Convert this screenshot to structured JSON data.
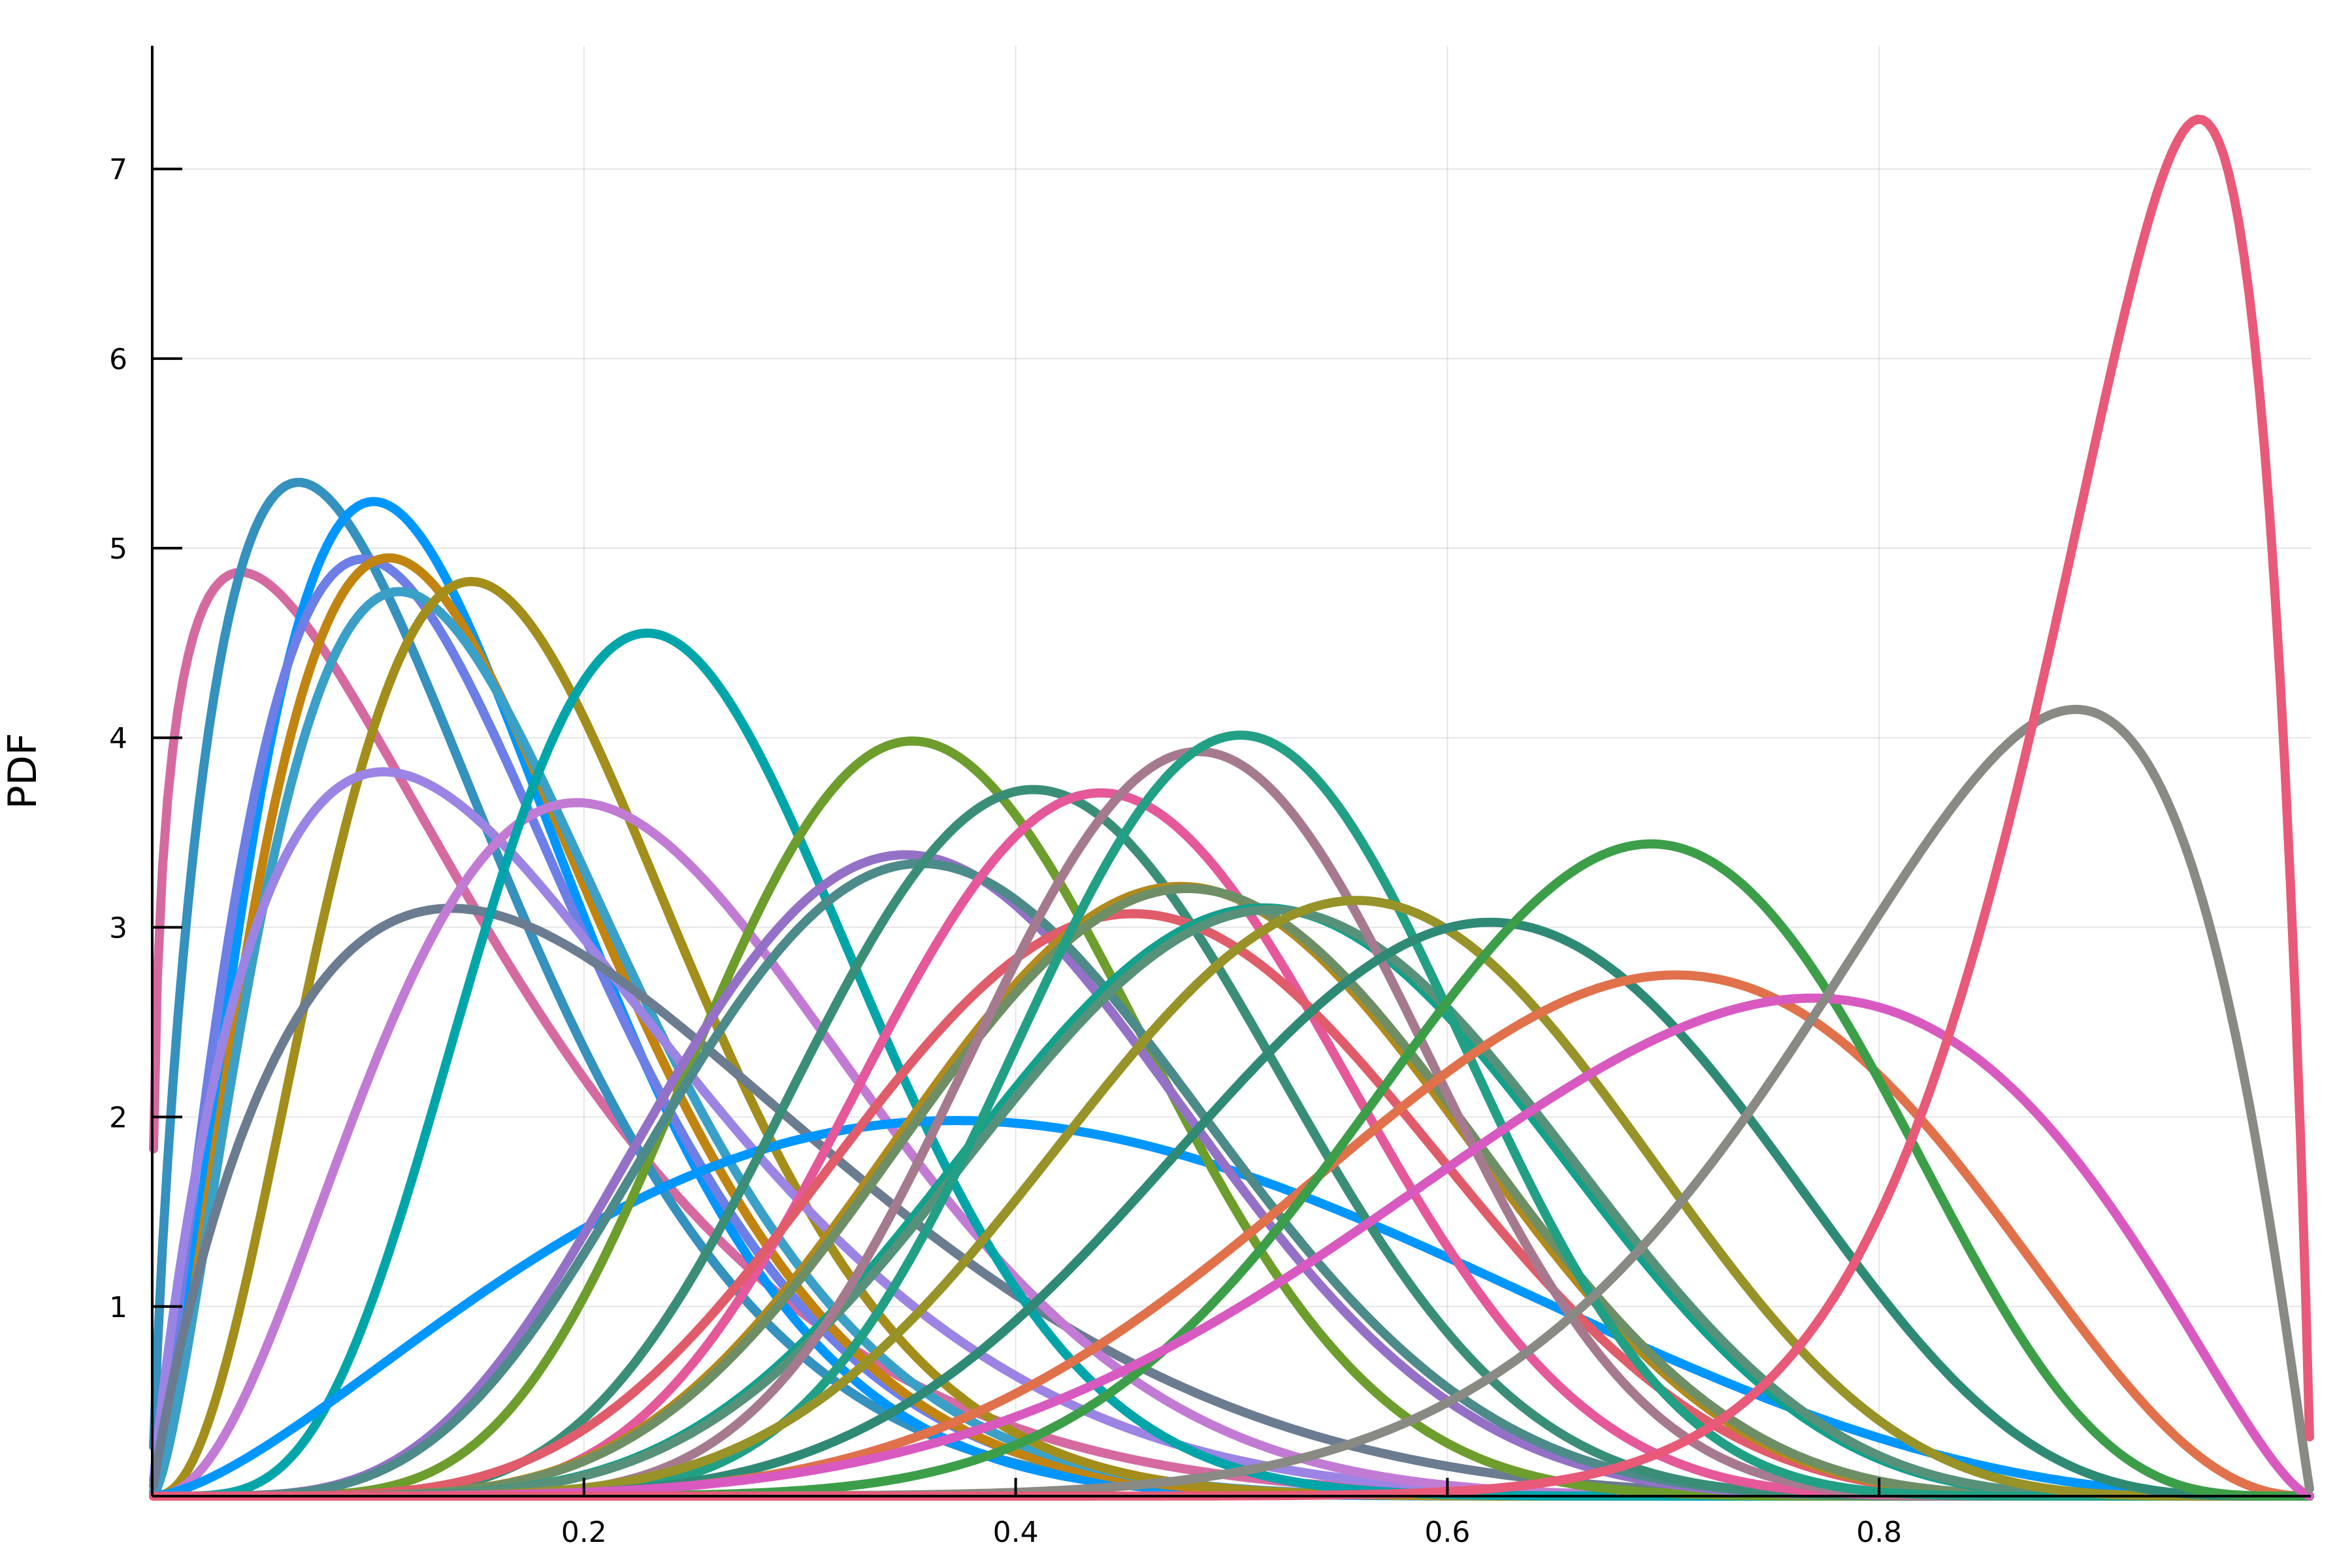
{
  "chart_data": {
    "type": "line",
    "title": "",
    "xlabel": "",
    "ylabel": "PDF",
    "xlim": [
      0,
      1
    ],
    "ylim": [
      0,
      7.65
    ],
    "xticks": [
      0.2,
      0.4,
      0.6,
      0.8
    ],
    "xtick_labels": [
      "0.2",
      "0.4",
      "0.6",
      "0.8"
    ],
    "yticks": [
      1,
      2,
      3,
      4,
      5,
      6,
      7
    ],
    "ytick_labels": [
      "1",
      "2",
      "3",
      "4",
      "5",
      "6",
      "7"
    ],
    "grid": true,
    "legend": "none",
    "series": [
      {
        "color": "#d56aa0",
        "params": [
          1.3,
          8.0
        ]
      },
      {
        "color": "#3591be",
        "params": [
          1.8,
          12.0
        ]
      },
      {
        "color": "#0096ff",
        "params": [
          2.6,
          15.0
        ]
      },
      {
        "color": "#6d7ee6",
        "params": [
          2.3,
          13.0
        ]
      },
      {
        "color": "#c18411",
        "params": [
          2.6,
          14.0
        ]
      },
      {
        "color": "#3aa0c8",
        "params": [
          2.6,
          13.4
        ]
      },
      {
        "color": "#a38e1c",
        "params": [
          3.6,
          16.0
        ]
      },
      {
        "color": "#9c84e4",
        "params": [
          1.9,
          8.5
        ]
      },
      {
        "color": "#6b7c91",
        "params": [
          1.9,
          6.6
        ]
      },
      {
        "color": "#c27bd4",
        "params": [
          3.4,
          10.8
        ]
      },
      {
        "color": "#00a5aa",
        "params": [
          6.0,
          17.8
        ]
      },
      {
        "color": "#0096ff",
        "params": [
          2.6,
          3.7
        ]
      },
      {
        "color": "#6d9d2c",
        "params": [
          8.5,
          14.8
        ]
      },
      {
        "color": "#9471c6",
        "params": [
          6.2,
          10.7
        ]
      },
      {
        "color": "#4d8a8a",
        "params": [
          6.2,
          10.4
        ]
      },
      {
        "color": "#3a8e77",
        "params": [
          9.0,
          12.6
        ]
      },
      {
        "color": "#e5589a",
        "params": [
          9.7,
          12.1
        ]
      },
      {
        "color": "#e05c6a",
        "params": [
          7.0,
          8.2
        ]
      },
      {
        "color": "#b18a1c",
        "params": [
          8.0,
          8.7
        ]
      },
      {
        "color": "#6e8f66",
        "params": [
          8.0,
          8.6
        ]
      },
      {
        "color": "#12a18c",
        "params": [
          8.0,
          7.6
        ]
      },
      {
        "color": "#58917a",
        "params": [
          8.0,
          7.5
        ]
      },
      {
        "color": "#a67a8e",
        "params": [
          12.0,
          12.7
        ]
      },
      {
        "color": "#22a085",
        "params": [
          13.0,
          12.8
        ]
      },
      {
        "color": "#989328",
        "params": [
          8.7,
          7.1
        ]
      },
      {
        "color": "#2f8a75",
        "params": [
          8.5,
          5.6
        ]
      },
      {
        "color": "#e0714b",
        "params": [
          7.0,
          3.5
        ]
      },
      {
        "color": "#3d9e4a",
        "params": [
          11.0,
          5.4
        ]
      },
      {
        "color": "#d85ac0",
        "params": [
          6.0,
          2.5
        ]
      },
      {
        "color": "#8a8a84",
        "params": [
          10.0,
          2.1
        ]
      },
      {
        "color": "#e85a78",
        "params": [
          17.5,
          1.9
        ]
      }
    ]
  }
}
